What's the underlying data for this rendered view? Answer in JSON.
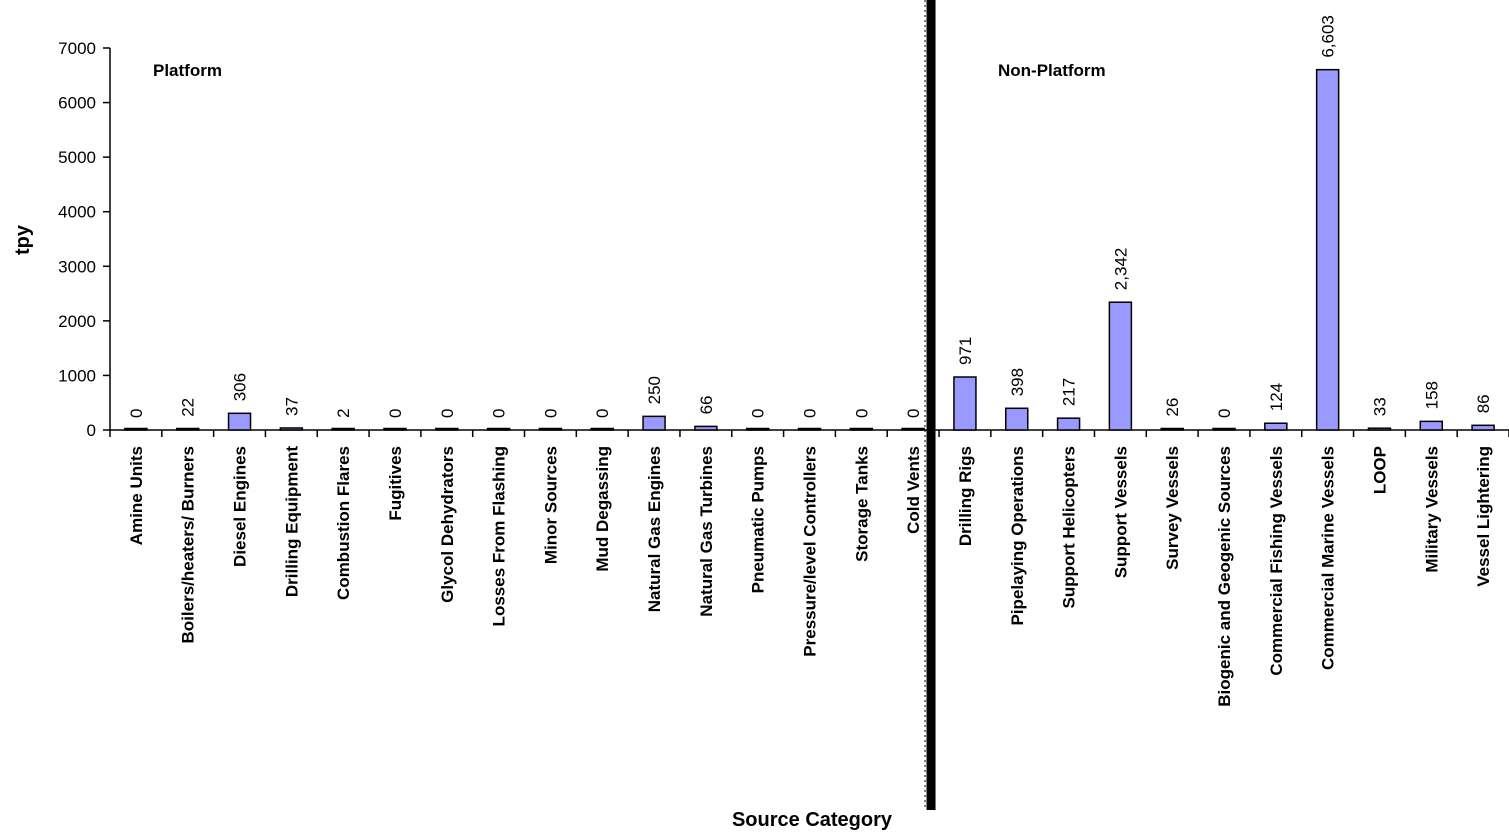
{
  "chart_data": {
    "type": "bar",
    "xlabel": "Source Category",
    "ylabel": "tpy",
    "ylim": [
      0,
      7000
    ],
    "yticks": [
      0,
      1000,
      2000,
      3000,
      4000,
      5000,
      6000,
      7000
    ],
    "grid": false,
    "legend": "none",
    "bar_color": "#9999ff",
    "divider_color": "#000000",
    "regions": [
      {
        "label": "Platform",
        "start": 0,
        "end": 15
      },
      {
        "label": "Non-Platform",
        "start": 16,
        "end": 27
      }
    ],
    "categories": [
      "Amine Units",
      "Boilers/heaters/ Burners",
      "Diesel Engines",
      "Drilling Equipment",
      "Combustion Flares",
      "Fugitives",
      "Glycol Dehydrators",
      "Losses From Flashing",
      "Minor Sources",
      "Mud Degassing",
      "Natural Gas Engines",
      "Natural Gas Turbines",
      "Pneumatic Pumps",
      "Pressure/level Controllers",
      "Storage Tanks",
      "Cold Vents",
      "Drilling Rigs",
      "Pipelaying Operations",
      "Support Helicopters",
      "Support Vessels",
      "Survey Vessels",
      "Biogenic and Geogenic Sources",
      "Commercial Fishing Vessels",
      "Commercial Marine Vessels",
      "LOOP",
      "Military Vessels",
      "Vessel Lightering"
    ],
    "values": [
      0,
      22,
      306,
      37,
      2,
      0,
      0,
      0,
      0,
      0,
      250,
      66,
      0,
      0,
      0,
      0,
      971,
      398,
      217,
      2342,
      26,
      0,
      124,
      6603,
      33,
      158,
      86
    ],
    "data_labels": [
      "0",
      "22",
      "306",
      "37",
      "2",
      "0",
      "0",
      "0",
      "0",
      "0",
      "250",
      "66",
      "0",
      "0",
      "0",
      "0",
      "971",
      "398",
      "217",
      "2,342",
      "26",
      "0",
      "124",
      "6,603",
      "33",
      "158",
      "86"
    ]
  }
}
